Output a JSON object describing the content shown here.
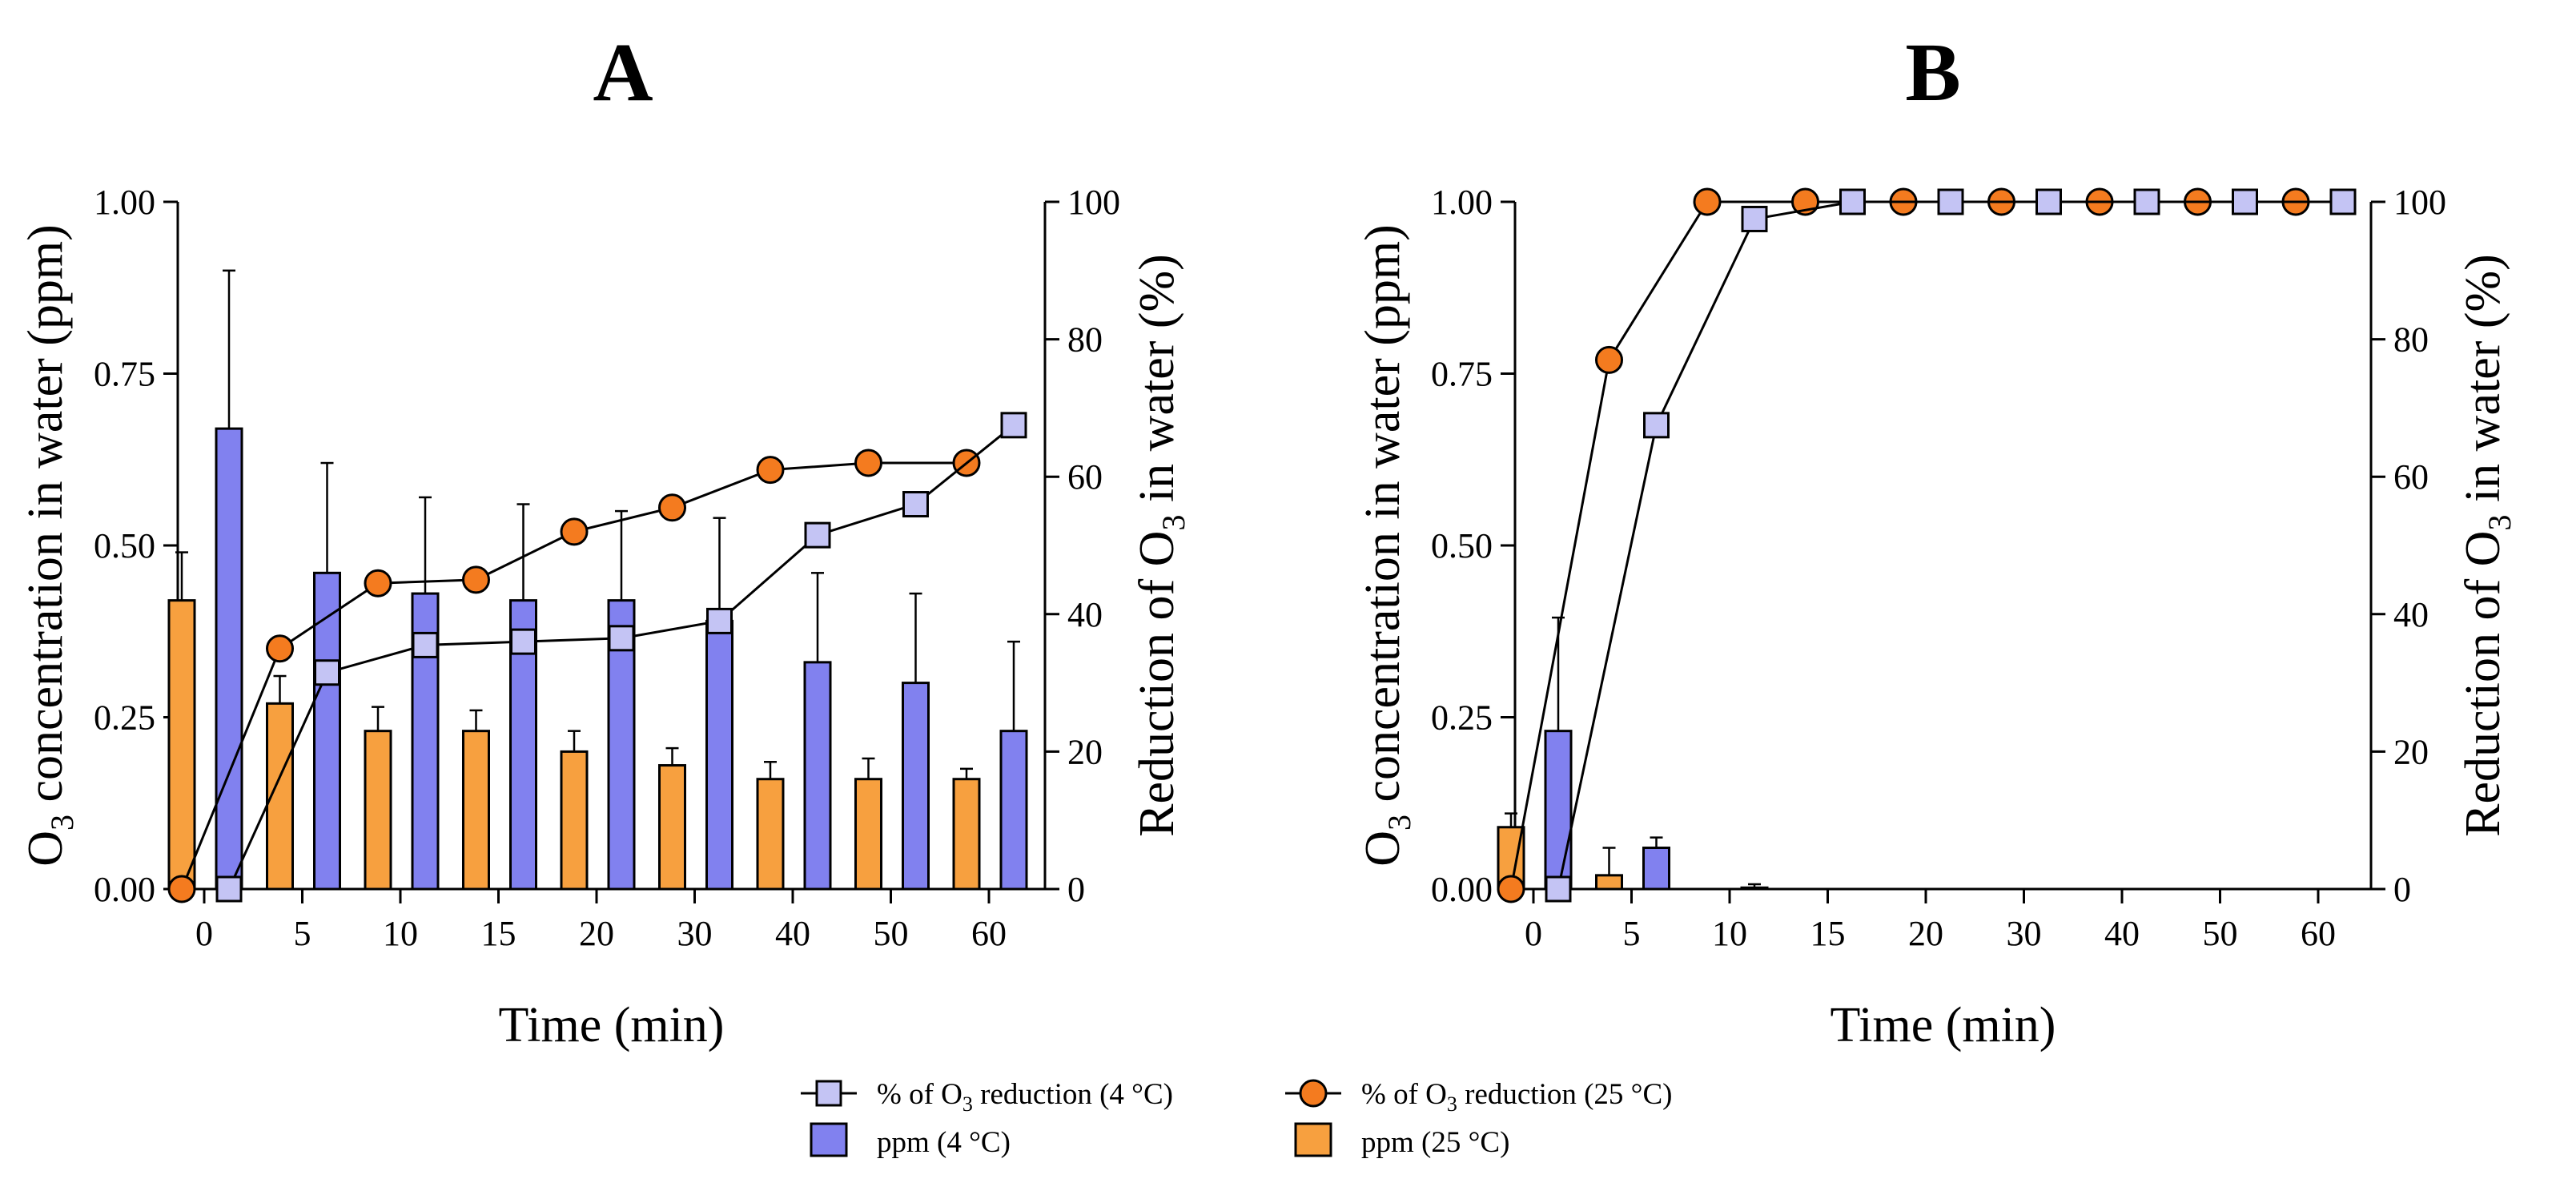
{
  "chart_data": [
    {
      "type": "bar",
      "panel_label": "A",
      "xlabel": "Time (min)",
      "ylabel_left": "O3 concentration in water (ppm)",
      "ylabel_right": "Reduction of O3 in water (%)",
      "categories": [
        "0",
        "5",
        "10",
        "15",
        "20",
        "30",
        "40",
        "50",
        "60"
      ],
      "ylim_left": [
        0,
        1
      ],
      "yticks_left": [
        "0.00",
        "0.25",
        "0.50",
        "0.75",
        "1.00"
      ],
      "ylim_right": [
        0,
        100
      ],
      "yticks_right": [
        "0",
        "20",
        "40",
        "60",
        "80",
        "100"
      ],
      "bar_series": [
        {
          "name": "ppm (25 °C)",
          "color": "#F7A03F",
          "values": [
            0.42,
            0.27,
            0.23,
            0.23,
            0.2,
            0.18,
            0.16,
            0.16,
            0.16
          ],
          "errors": [
            0.07,
            0.04,
            0.035,
            0.03,
            0.03,
            0.025,
            0.025,
            0.03,
            0.015
          ]
        },
        {
          "name": "ppm (4 °C)",
          "color": "#8181EF",
          "values": [
            0.67,
            0.46,
            0.43,
            0.42,
            0.42,
            0.39,
            0.33,
            0.3,
            0.23
          ],
          "errors": [
            0.23,
            0.16,
            0.14,
            0.14,
            0.13,
            0.15,
            0.13,
            0.13,
            0.13
          ]
        }
      ],
      "line_series": [
        {
          "name": "% of O3 reduction (25 °C)",
          "marker": "circle",
          "color": "#F47B1F",
          "values": [
            0,
            35,
            44.5,
            45,
            52,
            55.5,
            61,
            62,
            62
          ]
        },
        {
          "name": "% of O3 reduction (4 °C)",
          "marker": "square",
          "color": "#C4C4F4",
          "values": [
            0,
            31.5,
            35.5,
            36,
            36.5,
            39,
            51.5,
            56,
            67.5
          ]
        }
      ]
    },
    {
      "type": "bar",
      "panel_label": "B",
      "xlabel": "Time (min)",
      "ylabel_left": "O3 concentration in water (ppm)",
      "ylabel_right": "Reduction of O3 in water (%)",
      "categories": [
        "0",
        "5",
        "10",
        "15",
        "20",
        "30",
        "40",
        "50",
        "60"
      ],
      "ylim_left": [
        0,
        1
      ],
      "yticks_left": [
        "0.00",
        "0.25",
        "0.50",
        "0.75",
        "1.00"
      ],
      "ylim_right": [
        0,
        100
      ],
      "yticks_right": [
        "0",
        "20",
        "40",
        "60",
        "80",
        "100"
      ],
      "bar_series": [
        {
          "name": "ppm (25 °C)",
          "color": "#F7A03F",
          "values": [
            0.09,
            0.02,
            0,
            0,
            0,
            0,
            0,
            0,
            0
          ],
          "errors": [
            0.02,
            0.04,
            0,
            0,
            0,
            0,
            0,
            0,
            0
          ]
        },
        {
          "name": "ppm (4 °C)",
          "color": "#8181EF",
          "values": [
            0.23,
            0.06,
            0.002,
            0,
            0,
            0,
            0,
            0,
            0
          ],
          "errors": [
            0.165,
            0.015,
            0.005,
            0,
            0,
            0,
            0,
            0,
            0
          ]
        }
      ],
      "line_series": [
        {
          "name": "% of O3 reduction (25 °C)",
          "marker": "circle",
          "color": "#F47B1F",
          "values": [
            0,
            77,
            100,
            100,
            100,
            100,
            100,
            100,
            100
          ]
        },
        {
          "name": "% of O3 reduction (4 °C)",
          "marker": "square",
          "color": "#C4C4F4",
          "values": [
            0,
            67.5,
            97.5,
            100,
            100,
            100,
            100,
            100,
            100
          ]
        }
      ]
    }
  ],
  "legend": [
    {
      "label_prefix": "% of O",
      "label_sub": "3",
      "label_suffix": " reduction (4 °C)",
      "kind": "line-square",
      "color": "#C4C4F4"
    },
    {
      "label_prefix": "% of O",
      "label_sub": "3",
      "label_suffix": " reduction (25 °C)",
      "kind": "line-circle",
      "color": "#F47B1F"
    },
    {
      "label_prefix": "ppm (4 °C)",
      "label_sub": "",
      "label_suffix": "",
      "kind": "bar",
      "color": "#8181EF"
    },
    {
      "label_prefix": "ppm (25 °C)",
      "label_sub": "",
      "label_suffix": "",
      "kind": "bar",
      "color": "#F7A03F"
    }
  ],
  "axis_text": {
    "ylabel_left_prefix": "O",
    "ylabel_left_sub": "3",
    "ylabel_left_suffix": " concentration in water (ppm)",
    "ylabel_right_prefix": "Reduction of O",
    "ylabel_right_sub": "3",
    "ylabel_right_suffix": " in water (%)"
  }
}
